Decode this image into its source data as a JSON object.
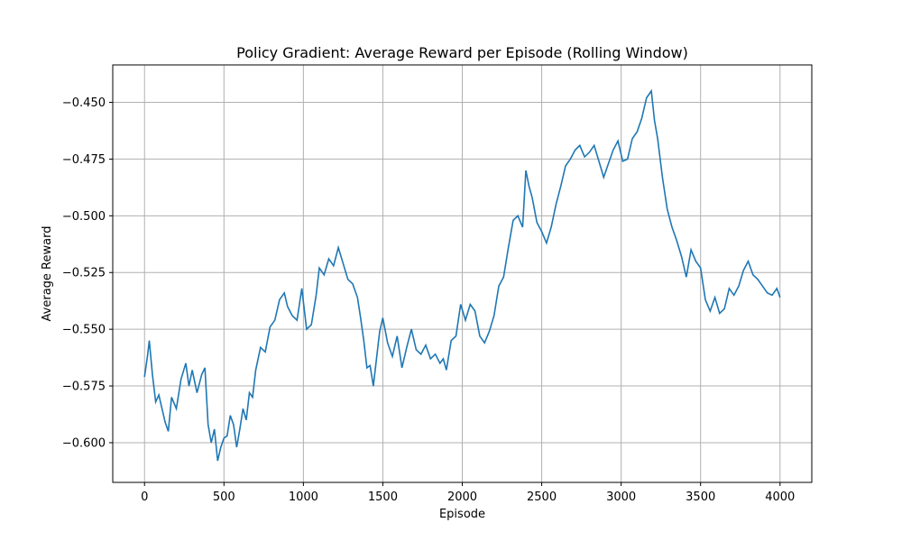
{
  "chart_data": {
    "type": "line",
    "title": "Policy Gradient: Average Reward per Episode (Rolling Window)",
    "xlabel": "Episode",
    "ylabel": "Average Reward",
    "xlim": [
      -200,
      4200
    ],
    "ylim": [
      -0.6175,
      -0.4335
    ],
    "xticks": [
      0,
      500,
      1000,
      1500,
      2000,
      2500,
      3000,
      3500,
      4000
    ],
    "xtick_labels": [
      "0",
      "500",
      "1000",
      "1500",
      "2000",
      "2500",
      "3000",
      "3500",
      "4000"
    ],
    "yticks": [
      -0.45,
      -0.475,
      -0.5,
      -0.525,
      -0.55,
      -0.575,
      -0.6
    ],
    "ytick_labels": [
      "−0.450",
      "−0.475",
      "−0.500",
      "−0.525",
      "−0.550",
      "−0.575",
      "−0.600"
    ],
    "grid": true,
    "line_color": "#1f77b4",
    "grid_color": "#b0b0b0",
    "series": [
      {
        "x": [
          0,
          20,
          30,
          50,
          70,
          90,
          110,
          130,
          150,
          170,
          200,
          230,
          260,
          280,
          300,
          330,
          360,
          380,
          400,
          420,
          440,
          460,
          480,
          500,
          520,
          540,
          560,
          580,
          600,
          620,
          640,
          660,
          680,
          700,
          730,
          760,
          790,
          820,
          850,
          880,
          900,
          930,
          960,
          990,
          1020,
          1050,
          1080,
          1100,
          1130,
          1160,
          1190,
          1220,
          1250,
          1280,
          1310,
          1340,
          1360,
          1380,
          1400,
          1420,
          1440,
          1460,
          1480,
          1500,
          1530,
          1560,
          1590,
          1620,
          1650,
          1680,
          1710,
          1740,
          1770,
          1800,
          1830,
          1860,
          1880,
          1900,
          1930,
          1960,
          1990,
          2020,
          2050,
          2080,
          2110,
          2140,
          2170,
          2200,
          2230,
          2260,
          2290,
          2320,
          2350,
          2380,
          2400,
          2420,
          2440,
          2470,
          2500,
          2530,
          2560,
          2590,
          2620,
          2650,
          2680,
          2710,
          2740,
          2770,
          2800,
          2830,
          2860,
          2890,
          2920,
          2950,
          2980,
          3010,
          3040,
          3070,
          3100,
          3130,
          3160,
          3190,
          3210,
          3230,
          3260,
          3290,
          3320,
          3350,
          3380,
          3410,
          3440,
          3470,
          3500,
          3530,
          3560,
          3590,
          3620,
          3650,
          3680,
          3710,
          3740,
          3770,
          3800,
          3830,
          3860,
          3890,
          3920,
          3950,
          3980,
          4000
        ],
        "y": [
          -0.571,
          -0.561,
          -0.555,
          -0.57,
          -0.582,
          -0.579,
          -0.585,
          -0.591,
          -0.595,
          -0.58,
          -0.585,
          -0.572,
          -0.565,
          -0.575,
          -0.568,
          -0.578,
          -0.57,
          -0.567,
          -0.592,
          -0.6,
          -0.594,
          -0.608,
          -0.602,
          -0.598,
          -0.597,
          -0.588,
          -0.592,
          -0.602,
          -0.594,
          -0.585,
          -0.59,
          -0.578,
          -0.58,
          -0.568,
          -0.558,
          -0.56,
          -0.549,
          -0.546,
          -0.537,
          -0.534,
          -0.54,
          -0.544,
          -0.546,
          -0.532,
          -0.55,
          -0.548,
          -0.535,
          -0.523,
          -0.526,
          -0.519,
          -0.522,
          -0.514,
          -0.521,
          -0.528,
          -0.53,
          -0.536,
          -0.545,
          -0.555,
          -0.567,
          -0.566,
          -0.575,
          -0.563,
          -0.551,
          -0.545,
          -0.556,
          -0.562,
          -0.553,
          -0.567,
          -0.558,
          -0.55,
          -0.559,
          -0.561,
          -0.557,
          -0.563,
          -0.561,
          -0.565,
          -0.563,
          -0.568,
          -0.555,
          -0.553,
          -0.539,
          -0.546,
          -0.539,
          -0.542,
          -0.553,
          -0.556,
          -0.551,
          -0.544,
          -0.531,
          -0.527,
          -0.514,
          -0.502,
          -0.5,
          -0.505,
          -0.48,
          -0.487,
          -0.492,
          -0.503,
          -0.507,
          -0.512,
          -0.505,
          -0.495,
          -0.487,
          -0.478,
          -0.475,
          -0.471,
          -0.469,
          -0.474,
          -0.472,
          -0.469,
          -0.476,
          -0.483,
          -0.477,
          -0.471,
          -0.467,
          -0.476,
          -0.475,
          -0.466,
          -0.463,
          -0.457,
          -0.448,
          -0.445,
          -0.458,
          -0.466,
          -0.483,
          -0.497,
          -0.505,
          -0.511,
          -0.518,
          -0.527,
          -0.515,
          -0.52,
          -0.523,
          -0.537,
          -0.542,
          -0.536,
          -0.543,
          -0.541,
          -0.532,
          -0.535,
          -0.531,
          -0.524,
          -0.52,
          -0.526,
          -0.528,
          -0.531,
          -0.534,
          -0.535,
          -0.532,
          -0.536
        ]
      }
    ]
  }
}
